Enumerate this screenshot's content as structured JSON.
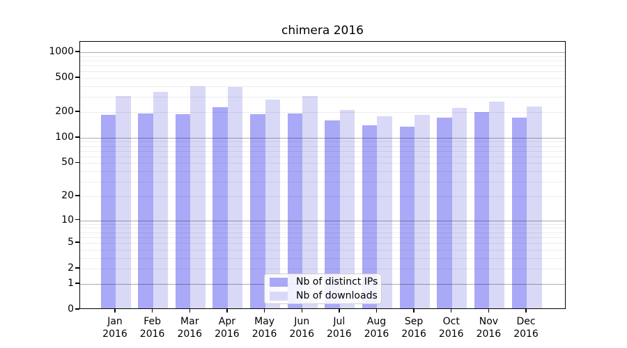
{
  "title": "chimera 2016",
  "chart_data": {
    "type": "bar",
    "title": "chimera 2016",
    "categories": [
      "Jan 2016",
      "Feb 2016",
      "Mar 2016",
      "Apr 2016",
      "May 2016",
      "Jun 2016",
      "Jul 2016",
      "Aug 2016",
      "Sep 2016",
      "Oct 2016",
      "Nov 2016",
      "Dec 2016"
    ],
    "x_tick_months": [
      "Jan",
      "Feb",
      "Mar",
      "Apr",
      "May",
      "Jun",
      "Jul",
      "Aug",
      "Sep",
      "Oct",
      "Nov",
      "Dec"
    ],
    "x_tick_year": "2016",
    "series": [
      {
        "name": "Nb of distinct IPs",
        "color": "#a9a9f7",
        "values": [
          184,
          193,
          190,
          230,
          188,
          192,
          159,
          140,
          135,
          171,
          201,
          171
        ]
      },
      {
        "name": "Nb of downloads",
        "color": "#d9d9f7",
        "values": [
          308,
          346,
          398,
          392,
          278,
          308,
          213,
          179,
          184,
          225,
          265,
          232
        ]
      }
    ],
    "yscale": "log1p",
    "ylim": [
      0,
      1325
    ],
    "yticks": [
      0,
      1,
      2,
      5,
      10,
      20,
      50,
      100,
      200,
      500,
      1000
    ],
    "grid": {
      "major_at": [
        1,
        10,
        100,
        1000
      ],
      "minor_decades": [
        1,
        10,
        100
      ],
      "major_color": "rgba(0,0,0,0.33)",
      "minor_color": "rgba(0,0,0,0.07)",
      "drawn_over_bars": true
    },
    "legend_position": "lower-center-inside",
    "background": "#ffffff"
  }
}
